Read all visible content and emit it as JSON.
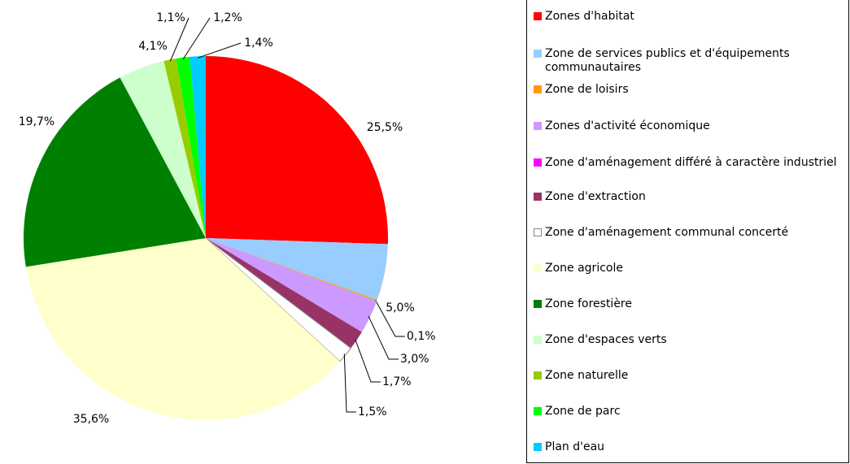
{
  "chart_data": {
    "type": "pie",
    "categories": [
      "Zones d'habitat",
      "Zone de services publics et d'équipements communautaires",
      "Zone de loisirs",
      "Zones d'activité économique",
      "Zone d'aménagement différé à caractère industriel",
      "Zone d'extraction",
      "Zone d'aménagement communal concerté",
      "Zone agricole",
      "Zone forestière",
      "Zone d'espaces verts",
      "Zone naturelle",
      "Zone de parc",
      "Plan d'eau"
    ],
    "values": [
      25.5,
      5.0,
      0.1,
      3.0,
      0,
      1.7,
      1.5,
      35.6,
      19.7,
      4.1,
      1.1,
      1.2,
      1.4
    ],
    "value_labels": [
      "25,5%",
      "5,0%",
      "0,1%",
      "3,0%",
      null,
      "1,7%",
      "1,5%",
      "35,6%",
      "19,7%",
      "4,1%",
      "1,1%",
      "1,2%",
      "1,4%"
    ],
    "colors": [
      "#ff0000",
      "#99ccff",
      "#ff9900",
      "#cc99ff",
      "#ff00ff",
      "#993366",
      "#ffffff",
      "#ffffcc",
      "#008000",
      "#ccffcc",
      "#99cc00",
      "#00ff00",
      "#00ccff"
    ],
    "legend": "right"
  }
}
